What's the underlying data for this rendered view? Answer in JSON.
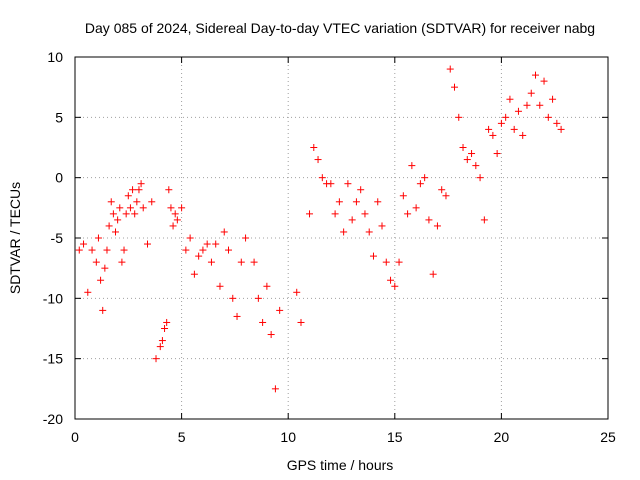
{
  "chart_data": {
    "type": "scatter",
    "title": "Day 085 of 2024, Sidereal Day-to-day VTEC variation (SDTVAR) for receiver nabg",
    "xlabel": "GPS time / hours",
    "ylabel": "SDTVAR / TECUs",
    "xlim": [
      0,
      25
    ],
    "ylim": [
      -20,
      10
    ],
    "xticks": [
      0,
      5,
      10,
      15,
      20,
      25
    ],
    "yticks": [
      -20,
      -15,
      -10,
      -5,
      0,
      5,
      10
    ],
    "xtick_labels": [
      "0",
      "5",
      "10",
      "15",
      "20",
      "25"
    ],
    "ytick_labels": [
      "-20",
      "-15",
      "-10",
      "-5",
      "0",
      "5",
      "10"
    ],
    "grid": true,
    "marker": "+",
    "color": "#ff0000",
    "series": [
      {
        "name": "SDTVAR",
        "x": [
          0.2,
          0.4,
          0.6,
          0.8,
          1.0,
          1.1,
          1.2,
          1.3,
          1.4,
          1.5,
          1.6,
          1.7,
          1.8,
          1.9,
          2.0,
          2.1,
          2.2,
          2.3,
          2.4,
          2.5,
          2.6,
          2.7,
          2.8,
          2.9,
          3.0,
          3.1,
          3.2,
          3.4,
          3.6,
          3.8,
          4.0,
          4.1,
          4.2,
          4.3,
          4.4,
          4.5,
          4.6,
          4.7,
          4.8,
          5.0,
          5.2,
          5.4,
          5.6,
          5.8,
          6.0,
          6.2,
          6.4,
          6.6,
          6.8,
          7.0,
          7.2,
          7.4,
          7.6,
          7.8,
          8.0,
          8.4,
          8.6,
          8.8,
          9.0,
          9.2,
          9.4,
          9.6,
          10.4,
          10.6,
          11.0,
          11.2,
          11.4,
          11.6,
          11.8,
          12.0,
          12.2,
          12.4,
          12.6,
          12.8,
          13.0,
          13.2,
          13.4,
          13.6,
          13.8,
          14.0,
          14.2,
          14.4,
          14.6,
          14.8,
          15.0,
          15.2,
          15.4,
          15.6,
          15.8,
          16.0,
          16.2,
          16.4,
          16.6,
          16.8,
          17.0,
          17.2,
          17.4,
          17.6,
          17.8,
          18.0,
          18.2,
          18.4,
          18.6,
          18.8,
          19.0,
          19.2,
          19.4,
          19.6,
          19.8,
          20.0,
          20.2,
          20.4,
          20.6,
          20.8,
          21.0,
          21.2,
          21.4,
          21.6,
          21.8,
          22.0,
          22.2,
          22.4,
          22.6,
          22.8
        ],
        "y": [
          -6.0,
          -5.5,
          -9.5,
          -6.0,
          -7.0,
          -5.0,
          -8.5,
          -11.0,
          -7.5,
          -6.0,
          -4.0,
          -2.0,
          -3.0,
          -4.5,
          -3.5,
          -2.5,
          -7.0,
          -6.0,
          -3.0,
          -1.5,
          -2.5,
          -1.0,
          -3.0,
          -2.0,
          -1.0,
          -0.5,
          -2.5,
          -5.5,
          -2.0,
          -15.0,
          -14.0,
          -13.5,
          -12.5,
          -12.0,
          -1.0,
          -2.5,
          -4.0,
          -3.0,
          -3.5,
          -2.5,
          -6.0,
          -5.0,
          -8.0,
          -6.5,
          -6.0,
          -5.5,
          -7.0,
          -5.5,
          -9.0,
          -4.5,
          -6.0,
          -10.0,
          -11.5,
          -7.0,
          -5.0,
          -7.0,
          -10.0,
          -12.0,
          -9.0,
          -13.0,
          -17.5,
          -11.0,
          -9.5,
          -12.0,
          -3.0,
          2.5,
          1.5,
          0.0,
          -0.5,
          -0.5,
          -3.0,
          -2.0,
          -4.5,
          -0.5,
          -3.5,
          -2.0,
          -1.0,
          -3.0,
          -4.5,
          -6.5,
          -2.0,
          -4.0,
          -7.0,
          -8.5,
          -9.0,
          -7.0,
          -1.5,
          -3.0,
          1.0,
          -2.5,
          -0.5,
          0.0,
          -3.5,
          -8.0,
          -4.0,
          -1.0,
          -1.5,
          9.0,
          7.5,
          5.0,
          2.5,
          1.5,
          2.0,
          1.0,
          0.0,
          -3.5,
          4.0,
          3.5,
          2.0,
          4.5,
          5.0,
          6.5,
          4.0,
          5.5,
          3.5,
          6.0,
          7.0,
          8.5,
          6.0,
          8.0,
          5.0,
          6.5,
          4.5,
          4.0
        ]
      }
    ]
  }
}
